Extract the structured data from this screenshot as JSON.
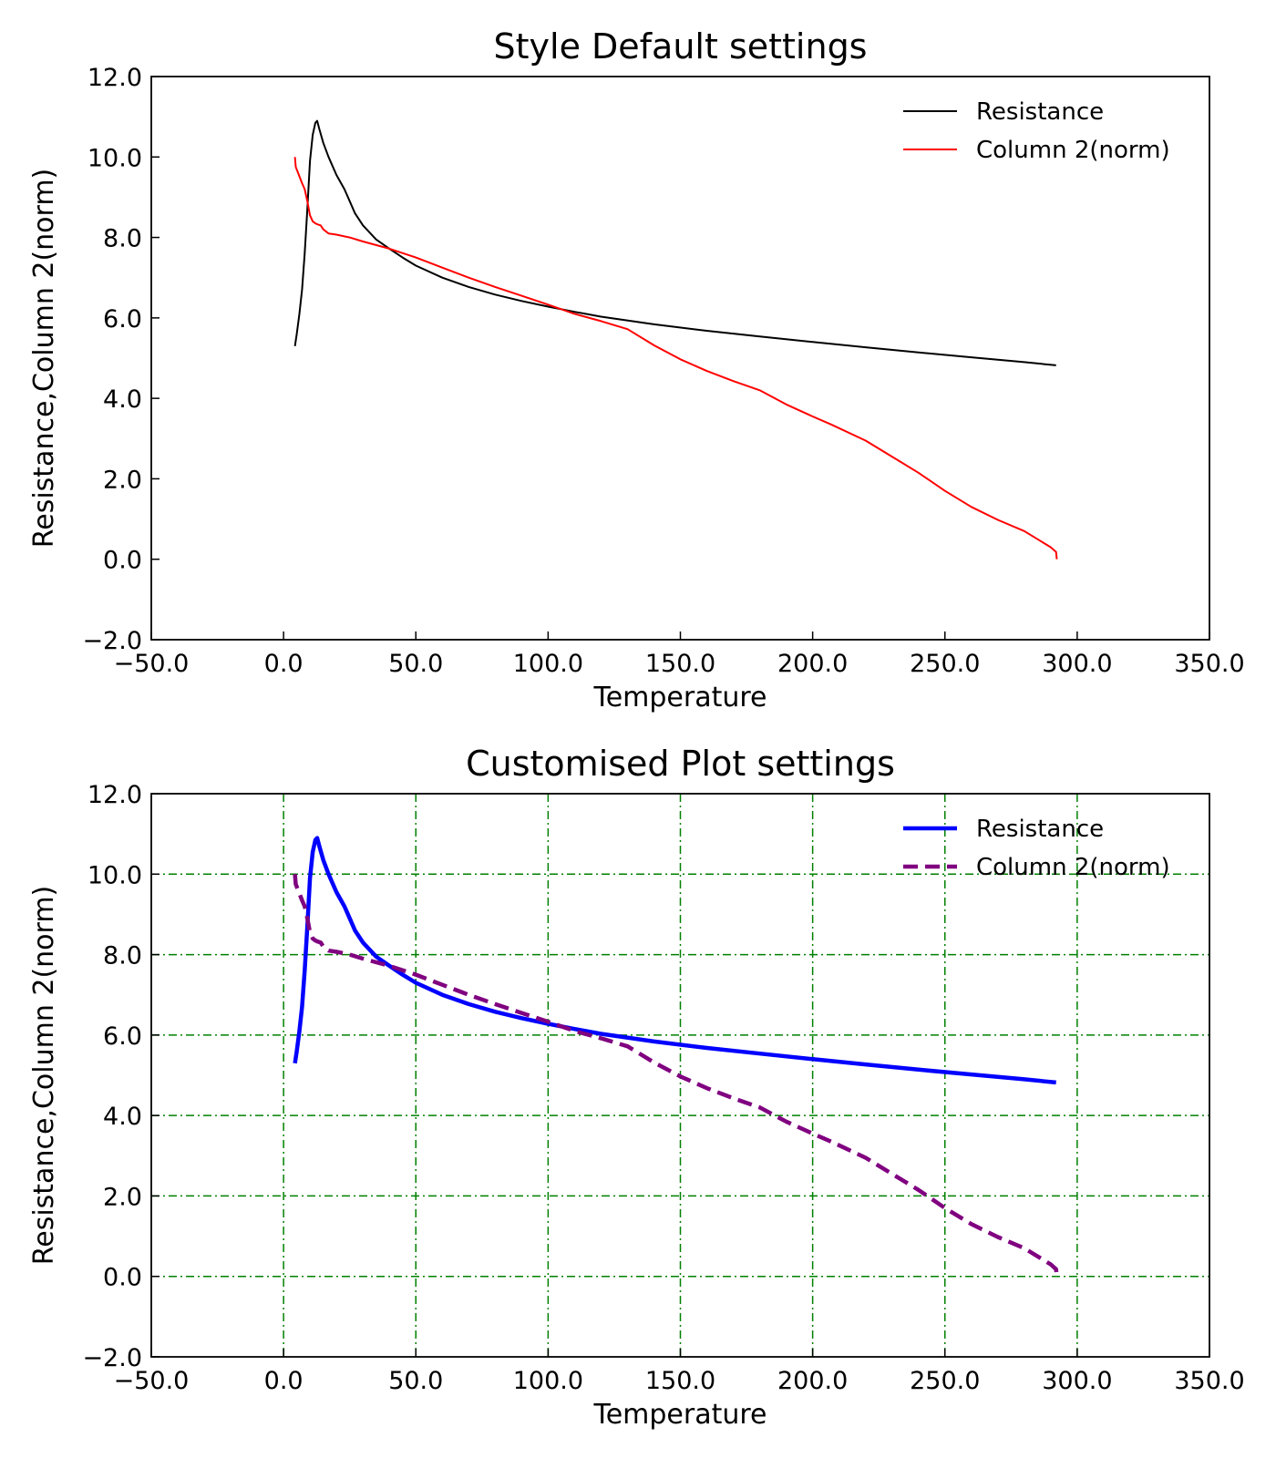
{
  "figure": {
    "charts": [
      "Style Default settings",
      "Customised Plot settings"
    ]
  },
  "chart_data": [
    {
      "type": "line",
      "title": "Style Default settings",
      "xlabel": "Temperature",
      "ylabel": "Resistance,Column 2(norm)",
      "xlim": [
        -50,
        350
      ],
      "ylim": [
        -2,
        12
      ],
      "xticks": [
        "−50.0",
        "0.0",
        "50.0",
        "100.0",
        "150.0",
        "200.0",
        "250.0",
        "300.0",
        "350.0"
      ],
      "xtick_values": [
        -50,
        0,
        50,
        100,
        150,
        200,
        250,
        300,
        350
      ],
      "yticks": [
        "−2.0",
        "0.0",
        "2.0",
        "4.0",
        "6.0",
        "8.0",
        "10.0",
        "12.0"
      ],
      "ytick_values": [
        -2,
        0,
        2,
        4,
        6,
        8,
        10,
        12
      ],
      "grid": false,
      "legend_position": "upper right",
      "series": [
        {
          "name": "Resistance",
          "color": "#000000",
          "style": "solid",
          "x": [
            4.3,
            5,
            6,
            7,
            8,
            9,
            10,
            11,
            12,
            12.7,
            13.5,
            15,
            17,
            20,
            23,
            25,
            27,
            30,
            35,
            40,
            45,
            50,
            60,
            70,
            80,
            90,
            100,
            110,
            120,
            140,
            160,
            180,
            200,
            220,
            240,
            260,
            280,
            292
          ],
          "y": [
            5.3,
            5.6,
            6.1,
            6.7,
            7.6,
            8.7,
            9.9,
            10.55,
            10.85,
            10.9,
            10.7,
            10.35,
            10.0,
            9.55,
            9.2,
            8.9,
            8.6,
            8.3,
            7.95,
            7.72,
            7.5,
            7.3,
            7.0,
            6.77,
            6.58,
            6.42,
            6.28,
            6.15,
            6.03,
            5.84,
            5.68,
            5.54,
            5.4,
            5.27,
            5.14,
            5.02,
            4.9,
            4.82
          ]
        },
        {
          "name": "Column 2(norm)",
          "color": "#ff0000",
          "style": "solid",
          "x": [
            4.3,
            4.6,
            5.5,
            7,
            8,
            9,
            10,
            11,
            12,
            13,
            14,
            15,
            17,
            20,
            25,
            30,
            40,
            50,
            60,
            70,
            80,
            90,
            100,
            110,
            120,
            130,
            140,
            150,
            160,
            170,
            180,
            190,
            200,
            207,
            220,
            230,
            240,
            250,
            260,
            270,
            280,
            290,
            292,
            292.3
          ],
          "y": [
            10.0,
            9.75,
            9.6,
            9.35,
            9.2,
            8.9,
            8.55,
            8.4,
            8.35,
            8.32,
            8.3,
            8.2,
            8.1,
            8.07,
            8.0,
            7.9,
            7.72,
            7.5,
            7.25,
            7.0,
            6.77,
            6.55,
            6.33,
            6.1,
            5.92,
            5.72,
            5.32,
            4.97,
            4.68,
            4.43,
            4.2,
            3.85,
            3.55,
            3.35,
            2.95,
            2.55,
            2.15,
            1.7,
            1.3,
            0.98,
            0.7,
            0.3,
            0.18,
            0.0
          ]
        }
      ]
    },
    {
      "type": "line",
      "title": "Customised Plot settings",
      "xlabel": "Temperature",
      "ylabel": "Resistance,Column 2(norm)",
      "xlim": [
        -50,
        350
      ],
      "ylim": [
        -2,
        12
      ],
      "xticks": [
        "−50.0",
        "0.0",
        "50.0",
        "100.0",
        "150.0",
        "200.0",
        "250.0",
        "300.0",
        "350.0"
      ],
      "xtick_values": [
        -50,
        0,
        50,
        100,
        150,
        200,
        250,
        300,
        350
      ],
      "yticks": [
        "−2.0",
        "0.0",
        "2.0",
        "4.0",
        "6.0",
        "8.0",
        "10.0",
        "12.0"
      ],
      "ytick_values": [
        -2,
        0,
        2,
        4,
        6,
        8,
        10,
        12
      ],
      "grid": true,
      "grid_color": "#008000",
      "legend_position": "upper right",
      "series": [
        {
          "name": "Resistance",
          "color": "#0000ff",
          "style": "solid-thick",
          "x": [
            4.3,
            5,
            6,
            7,
            8,
            9,
            10,
            11,
            12,
            12.7,
            13.5,
            15,
            17,
            20,
            23,
            25,
            27,
            30,
            35,
            40,
            45,
            50,
            60,
            70,
            80,
            90,
            100,
            110,
            120,
            140,
            160,
            180,
            200,
            220,
            240,
            260,
            280,
            292
          ],
          "y": [
            5.3,
            5.6,
            6.1,
            6.7,
            7.6,
            8.7,
            9.9,
            10.55,
            10.85,
            10.9,
            10.7,
            10.35,
            10.0,
            9.55,
            9.2,
            8.9,
            8.6,
            8.3,
            7.95,
            7.72,
            7.5,
            7.3,
            7.0,
            6.77,
            6.58,
            6.42,
            6.28,
            6.15,
            6.03,
            5.84,
            5.68,
            5.54,
            5.4,
            5.27,
            5.14,
            5.02,
            4.9,
            4.82
          ]
        },
        {
          "name": "Column 2(norm)",
          "color": "#800080",
          "style": "dashed-thick",
          "x": [
            4.3,
            4.6,
            5.5,
            7,
            8,
            9,
            10,
            11,
            12,
            13,
            14,
            15,
            17,
            20,
            25,
            30,
            40,
            50,
            60,
            70,
            80,
            90,
            100,
            110,
            120,
            130,
            140,
            150,
            160,
            170,
            180,
            190,
            200,
            207,
            220,
            230,
            240,
            250,
            260,
            270,
            280,
            290,
            292,
            292.3
          ],
          "y": [
            10.0,
            9.75,
            9.6,
            9.35,
            9.2,
            8.9,
            8.55,
            8.4,
            8.35,
            8.32,
            8.3,
            8.2,
            8.1,
            8.07,
            8.0,
            7.9,
            7.72,
            7.5,
            7.25,
            7.0,
            6.77,
            6.55,
            6.33,
            6.1,
            5.92,
            5.72,
            5.32,
            4.97,
            4.68,
            4.43,
            4.2,
            3.85,
            3.55,
            3.35,
            2.95,
            2.55,
            2.15,
            1.7,
            1.3,
            0.98,
            0.7,
            0.3,
            0.18,
            0.0
          ]
        }
      ]
    }
  ]
}
